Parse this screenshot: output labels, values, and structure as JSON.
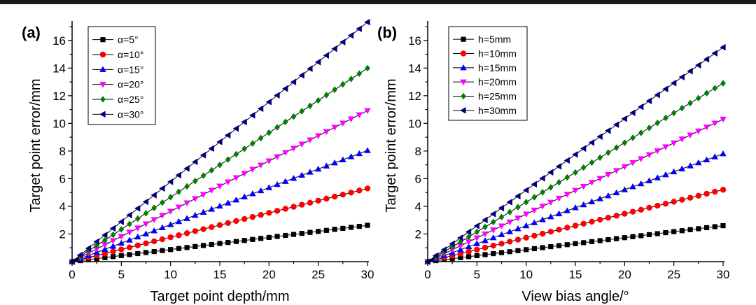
{
  "chart_data": [
    {
      "type": "line",
      "panel_label": "(a)",
      "xlabel": "Target point depth/mm",
      "ylabel": "Target point error/mm",
      "xlim": [
        0,
        30
      ],
      "ylim": [
        0,
        17
      ],
      "xticks": [
        0,
        5,
        10,
        15,
        20,
        25,
        30
      ],
      "yticks": [
        2,
        4,
        6,
        8,
        10,
        12,
        14,
        16
      ],
      "x": [
        0,
        0.833,
        1.667,
        2.5,
        3.333,
        4.167,
        5,
        5.833,
        6.667,
        7.5,
        8.333,
        9.167,
        10,
        10.833,
        11.667,
        12.5,
        13.333,
        14.167,
        15,
        15.833,
        16.667,
        17.5,
        18.333,
        19.167,
        20,
        20.833,
        21.667,
        22.5,
        23.333,
        24.167,
        25,
        25.833,
        26.667,
        27.5,
        28.333,
        29.167,
        30
      ],
      "legend_position": "top-left",
      "series": [
        {
          "name": "α=5°",
          "slope": 0.0875,
          "color": "#000000",
          "marker": "square"
        },
        {
          "name": "α=10°",
          "slope": 0.1763,
          "color": "#ff0000",
          "marker": "circle"
        },
        {
          "name": "α=15°",
          "slope": 0.2679,
          "color": "#0000ff",
          "marker": "triangle-up"
        },
        {
          "name": "α=20°",
          "slope": 0.364,
          "color": "#ff00ff",
          "marker": "triangle-down"
        },
        {
          "name": "α=25°",
          "slope": 0.4663,
          "color": "#008000",
          "marker": "diamond"
        },
        {
          "name": "α=30°",
          "slope": 0.5774,
          "color": "#000080",
          "marker": "triangle-left"
        }
      ]
    },
    {
      "type": "line",
      "panel_label": "(b)",
      "xlabel": "View bias angle/°",
      "ylabel": "Target point error/mm",
      "xlim": [
        0,
        30
      ],
      "ylim": [
        0,
        17
      ],
      "xticks": [
        0,
        5,
        10,
        15,
        20,
        25,
        30
      ],
      "yticks": [
        2,
        4,
        6,
        8,
        10,
        12,
        14,
        16
      ],
      "x": [
        0,
        0.833,
        1.667,
        2.5,
        3.333,
        4.167,
        5,
        5.833,
        6.667,
        7.5,
        8.333,
        9.167,
        10,
        10.833,
        11.667,
        12.5,
        13.333,
        14.167,
        15,
        15.833,
        16.667,
        17.5,
        18.333,
        19.167,
        20,
        20.833,
        21.667,
        22.5,
        23.333,
        24.167,
        25,
        25.833,
        26.667,
        27.5,
        28.333,
        29.167,
        30
      ],
      "legend_position": "top-left",
      "series": [
        {
          "name": "h=5mm",
          "slope": 0.0867,
          "color": "#000000",
          "marker": "square"
        },
        {
          "name": "h=10mm",
          "slope": 0.1733,
          "color": "#ff0000",
          "marker": "circle"
        },
        {
          "name": "h=15mm",
          "slope": 0.26,
          "color": "#0000ff",
          "marker": "triangle-up"
        },
        {
          "name": "h=20mm",
          "slope": 0.3433,
          "color": "#ff00ff",
          "marker": "triangle-down"
        },
        {
          "name": "h=25mm",
          "slope": 0.43,
          "color": "#008000",
          "marker": "diamond"
        },
        {
          "name": "h=30mm",
          "slope": 0.5167,
          "color": "#000080",
          "marker": "triangle-left"
        }
      ]
    }
  ]
}
